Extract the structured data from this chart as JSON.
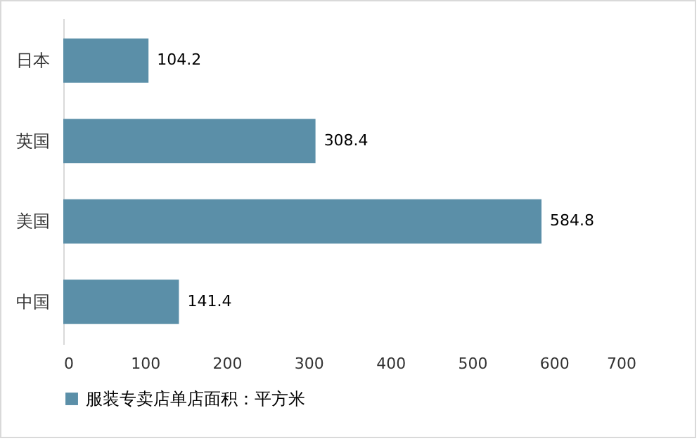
{
  "chart_data": {
    "type": "bar",
    "orientation": "horizontal",
    "categories": [
      "日本",
      "英国",
      "美国",
      "中国"
    ],
    "series": [
      {
        "name": "服装专卖店单店面积：平方米",
        "color": "#5b8fa8",
        "values": [
          104.2,
          308.4,
          584.8,
          141.4
        ]
      }
    ],
    "xlim": [
      0,
      700
    ],
    "xticks": [
      0,
      100,
      200,
      300,
      400,
      500,
      600,
      700
    ],
    "data_labels": true,
    "legend": "bottom",
    "grid": false
  }
}
